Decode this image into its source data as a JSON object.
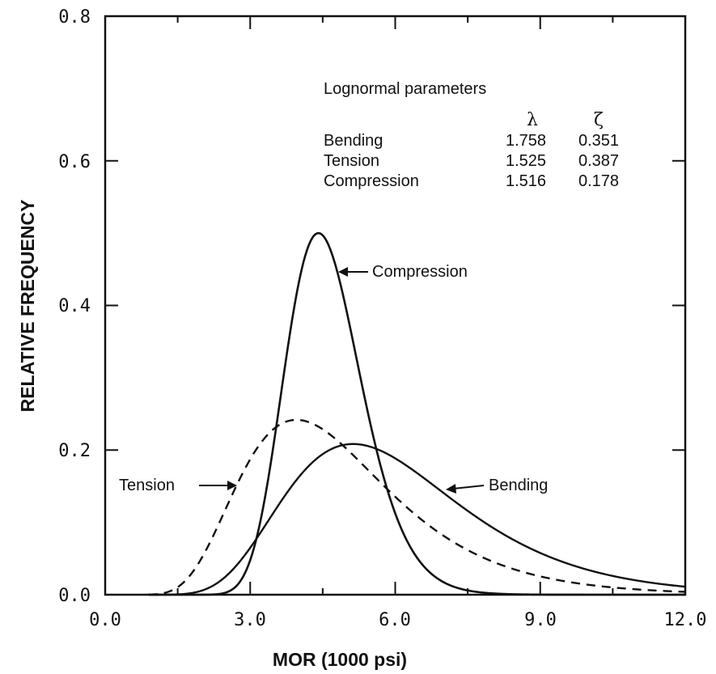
{
  "chart_data": {
    "type": "line",
    "xlabel": "MOR (1000 psi)",
    "ylabel": "RELATIVE FREQUENCY",
    "xlim": [
      0,
      12
    ],
    "ylim": [
      0,
      0.8
    ],
    "x_ticks": [
      "0.0",
      "3.0",
      "6.0",
      "9.0",
      "12.0"
    ],
    "y_ticks": [
      "0.0",
      "0.2",
      "0.4",
      "0.6",
      "0.8"
    ],
    "grid": false,
    "legend_box": {
      "title": "Lognormal parameters",
      "col_lambda": "λ",
      "col_zeta": "ζ",
      "rows": [
        {
          "name": "Bending",
          "lambda": "1.758",
          "zeta": "0.351"
        },
        {
          "name": "Tension",
          "lambda": "1.525",
          "zeta": "0.387"
        },
        {
          "name": "Compression",
          "lambda": "1.516",
          "zeta": "0.178"
        }
      ]
    },
    "series": [
      {
        "name": "Bending",
        "dist": "lognormal",
        "lambda": 1.758,
        "zeta": 0.351,
        "style": "solid",
        "color": "#111111"
      },
      {
        "name": "Tension",
        "dist": "lognormal",
        "lambda": 1.525,
        "zeta": 0.387,
        "style": "dashed",
        "color": "#111111"
      },
      {
        "name": "Compression",
        "dist": "lognormal",
        "lambda": 1.516,
        "zeta": 0.178,
        "style": "solid",
        "color": "#111111"
      }
    ],
    "annotations": [
      {
        "text": "Compression",
        "series": "Compression"
      },
      {
        "text": "Tension",
        "series": "Tension"
      },
      {
        "text": "Bending",
        "series": "Bending"
      }
    ]
  }
}
